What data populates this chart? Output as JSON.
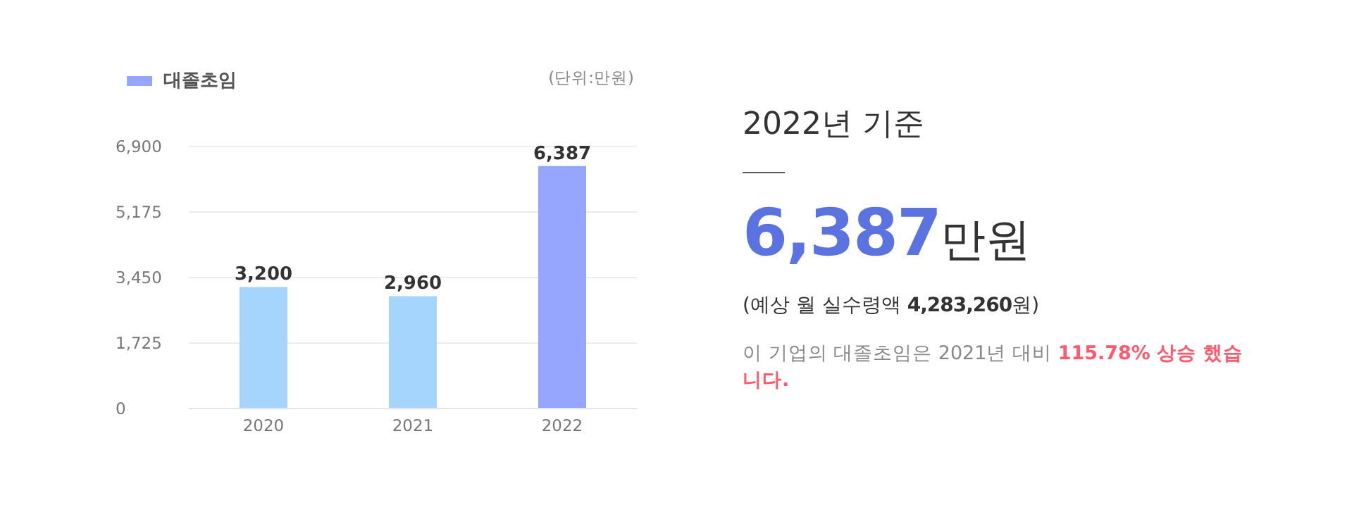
{
  "chart_data": [
    {
      "type": "bar",
      "categories": [
        "2020",
        "2021",
        "2022"
      ],
      "series": [
        {
          "name": "대졸초임",
          "color": "#96a5fe",
          "colors": [
            "#a5d4fc",
            "#a5d4fc",
            "#96a5fe"
          ],
          "values": [
            3200,
            2960,
            6387
          ],
          "value_labels": [
            "3,200",
            "2,960",
            "6,387"
          ]
        }
      ],
      "ylim": [
        0,
        6900
      ],
      "yticks": [
        0,
        {
          "value": 1725,
          "label": "1,725"
        },
        {
          "value": 3450,
          "label": "3,450"
        },
        {
          "value": 5175,
          "label": "5,175"
        },
        {
          "value": 6900,
          "label": "6,900"
        }
      ],
      "grid": "y",
      "legend": "top left",
      "annotations": [
        "(단위:만원)"
      ]
    },
    {
      "type": "other",
      "title": "2022년 기준",
      "annotations": [
        "6,387",
        "만원",
        "(예상 월 실수령액",
        "4,283,260",
        "원)",
        "이 기업의 대졸초임은 2021년 대비",
        "115.78% 상승 했습니다."
      ]
    }
  ]
}
